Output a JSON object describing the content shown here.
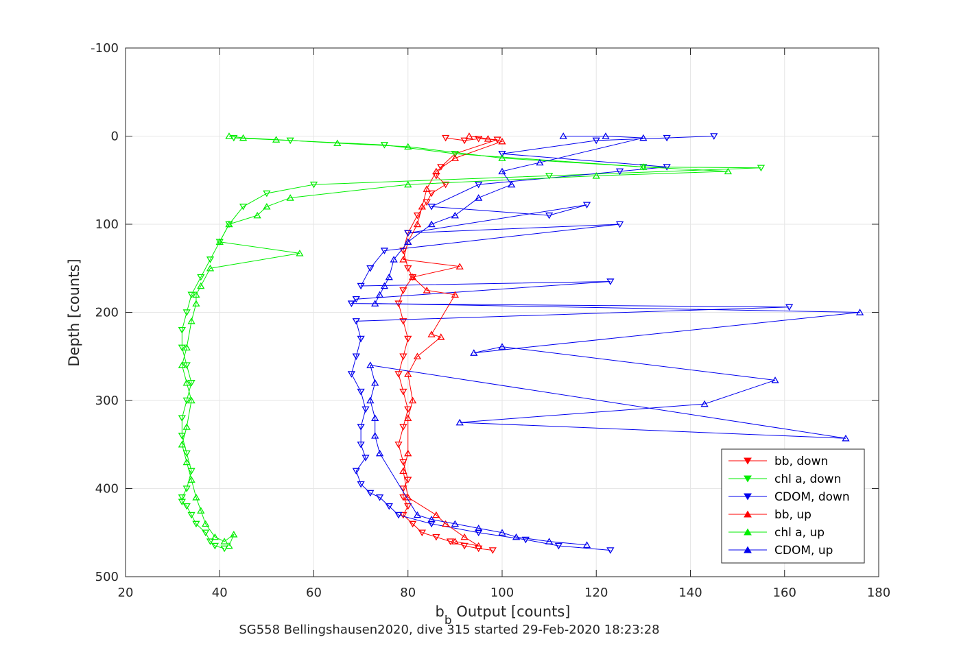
{
  "chart_data": {
    "type": "scatter",
    "title": "",
    "caption": "SG558 Bellingshausen2020, dive 315 started 29-Feb-2020 18:23:28",
    "xlabel_main": "b",
    "xlabel_sub": "b",
    "xlabel_rest": " Output [counts]",
    "ylabel": "Depth [counts]",
    "xlim": [
      20,
      180
    ],
    "ylim": [
      -100,
      500
    ],
    "y_reversed": true,
    "grid": true,
    "legend_placement": "bottom-right",
    "xticks": [
      "20",
      "40",
      "60",
      "80",
      "100",
      "120",
      "140",
      "160",
      "180"
    ],
    "yticks": [
      "-100",
      "0",
      "100",
      "200",
      "300",
      "400",
      "500"
    ],
    "series": [
      {
        "name": "bb, down",
        "color": "#ff0000",
        "marker": "triangle-down",
        "x": [
          88,
          92,
          95,
          99,
          90,
          87,
          86,
          88,
          85,
          84,
          82,
          80,
          79,
          80,
          81,
          79,
          78,
          79,
          80,
          79,
          78,
          79,
          80,
          79,
          78,
          79,
          80,
          79,
          79,
          80,
          79,
          81,
          83,
          86,
          89,
          92,
          95,
          98
        ],
        "y": [
          2,
          5,
          3,
          4,
          20,
          35,
          45,
          55,
          65,
          75,
          90,
          110,
          130,
          150,
          160,
          175,
          190,
          210,
          230,
          250,
          270,
          290,
          310,
          330,
          350,
          370,
          390,
          400,
          410,
          420,
          430,
          440,
          450,
          455,
          460,
          465,
          468,
          470
        ]
      },
      {
        "name": "chl a, down",
        "color": "#00ee00",
        "marker": "triangle-down",
        "x": [
          43,
          55,
          75,
          90,
          130,
          155,
          110,
          60,
          50,
          45,
          42,
          40,
          38,
          36,
          34,
          33,
          32,
          32,
          33,
          34,
          33,
          32,
          32,
          33,
          34,
          33,
          32,
          32,
          33,
          34,
          35,
          37,
          38,
          39,
          41
        ],
        "y": [
          2,
          5,
          10,
          20,
          35,
          36,
          45,
          55,
          65,
          80,
          100,
          120,
          140,
          160,
          180,
          200,
          220,
          240,
          260,
          280,
          300,
          320,
          340,
          360,
          380,
          400,
          410,
          415,
          420,
          430,
          440,
          450,
          460,
          465,
          468
        ]
      },
      {
        "name": "CDOM, down",
        "color": "#0000ee",
        "marker": "triangle-down",
        "x": [
          145,
          135,
          120,
          100,
          135,
          125,
          95,
          85,
          110,
          118,
          80,
          125,
          75,
          72,
          70,
          123,
          69,
          68,
          161,
          69,
          70,
          69,
          68,
          70,
          71,
          70,
          70,
          71,
          69,
          70,
          72,
          74,
          76,
          78,
          85,
          95,
          105,
          112,
          123
        ],
        "y": [
          0,
          2,
          5,
          20,
          35,
          40,
          55,
          80,
          90,
          78,
          110,
          100,
          130,
          150,
          170,
          165,
          185,
          190,
          194,
          210,
          230,
          250,
          270,
          290,
          310,
          330,
          350,
          365,
          380,
          395,
          405,
          410,
          420,
          430,
          440,
          450,
          458,
          465,
          470
        ]
      },
      {
        "name": "bb, up",
        "color": "#ff0000",
        "marker": "triangle-up",
        "x": [
          93,
          97,
          100,
          90,
          86,
          84,
          83,
          82,
          80,
          79,
          91,
          81,
          84,
          90,
          85,
          87,
          82,
          80,
          81,
          80,
          80,
          79,
          80,
          86,
          88,
          92,
          95,
          90
        ],
        "y": [
          0,
          3,
          6,
          25,
          40,
          60,
          80,
          100,
          120,
          140,
          148,
          160,
          175,
          180,
          225,
          228,
          250,
          270,
          300,
          320,
          360,
          380,
          410,
          430,
          440,
          455,
          465,
          460
        ]
      },
      {
        "name": "chl a, up",
        "color": "#00ee00",
        "marker": "triangle-up",
        "x": [
          42,
          45,
          52,
          65,
          80,
          100,
          130,
          148,
          120,
          80,
          55,
          50,
          48,
          42,
          40,
          57,
          38,
          36,
          35,
          35,
          34,
          33,
          32,
          33,
          34,
          33,
          32,
          33,
          34,
          35,
          36,
          37,
          39,
          41,
          43,
          42
        ],
        "y": [
          0,
          2,
          4,
          8,
          12,
          25,
          35,
          40,
          45,
          55,
          70,
          80,
          90,
          100,
          120,
          133,
          150,
          170,
          180,
          190,
          210,
          240,
          260,
          280,
          300,
          330,
          350,
          370,
          390,
          410,
          425,
          440,
          455,
          460,
          452,
          465
        ]
      },
      {
        "name": "CDOM, up",
        "color": "#0000ee",
        "marker": "triangle-up",
        "x": [
          113,
          122,
          130,
          108,
          100,
          102,
          95,
          90,
          85,
          80,
          77,
          76,
          75,
          74,
          73,
          176,
          94,
          100,
          158,
          143,
          91,
          173,
          72,
          73,
          72,
          73,
          73,
          74,
          82,
          85,
          90,
          95,
          100,
          103,
          110,
          118
        ],
        "y": [
          0,
          0,
          2,
          30,
          40,
          55,
          70,
          90,
          100,
          120,
          140,
          160,
          170,
          180,
          190,
          200,
          246,
          239,
          277,
          304,
          325,
          343,
          260,
          280,
          300,
          320,
          340,
          360,
          430,
          435,
          440,
          445,
          450,
          455,
          460,
          464
        ]
      }
    ]
  }
}
